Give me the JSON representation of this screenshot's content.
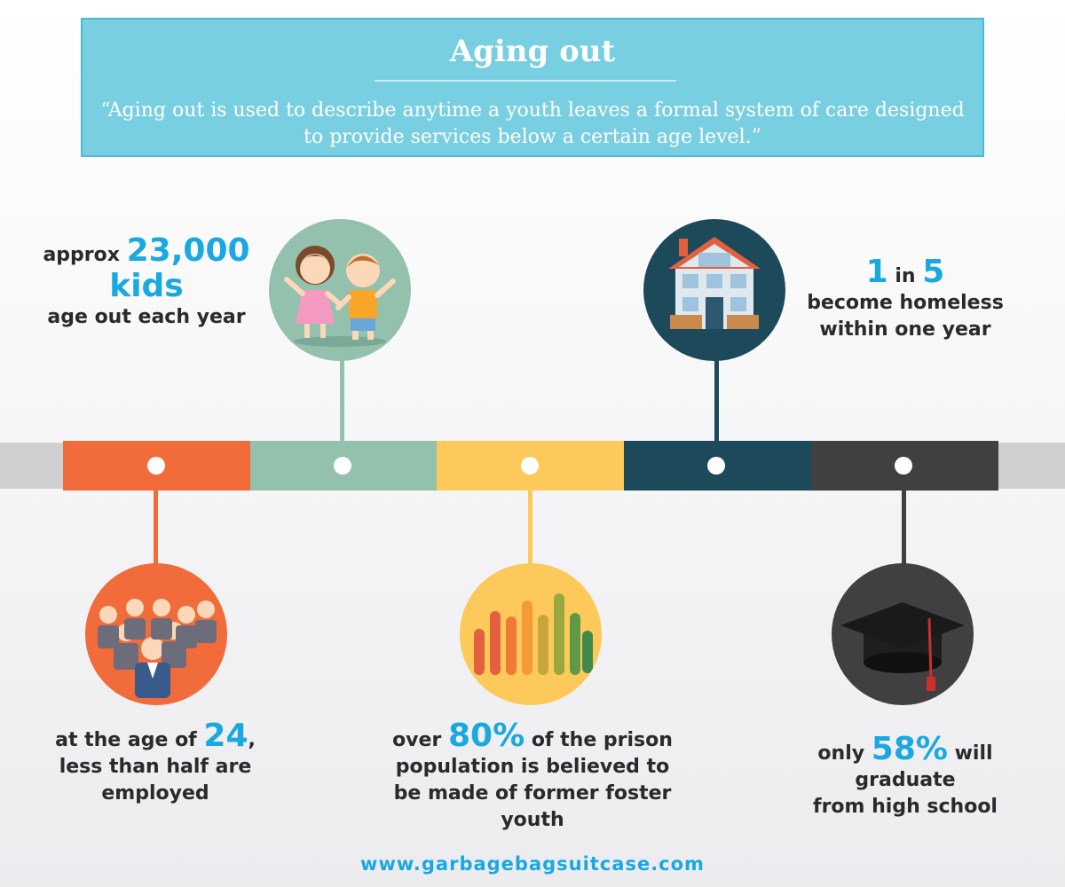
{
  "header": {
    "title": "Aging out",
    "quote_line1": "“Aging out is used to describe anytime a youth leaves a formal system of care designed",
    "quote_line2": "to provide services below a certain age level.”"
  },
  "timeline": {
    "colors": [
      "#f26b3a",
      "#93c1ad",
      "#fdc95a",
      "#1c4a5b",
      "#404040"
    ]
  },
  "stats": {
    "kids": {
      "prefix": "approx",
      "number": "23,000",
      "unit": "kids",
      "suffix": "age out each year",
      "icon": "children-icon"
    },
    "homeless": {
      "a": "1",
      "in": "in",
      "b": "5",
      "line2": "become homeless",
      "line3": "within one year",
      "icon": "house-icon"
    },
    "employed": {
      "prefix": "at the age of",
      "number": "24",
      "comma": ",",
      "line2": "less than half are",
      "line3": "employed",
      "icon": "business-people-icon"
    },
    "prison": {
      "prefix": "over",
      "number": "80%",
      "rest1": "of the prison",
      "line2": "population is believed to",
      "line3": "be made of former foster",
      "line4": "youth",
      "icon": "raised-hands-icon"
    },
    "graduate": {
      "prefix": "only",
      "number": "58%",
      "rest1": "will",
      "line2": "graduate",
      "line3": "from high school",
      "icon": "graduation-cap-icon"
    }
  },
  "footer": {
    "url": "www.garbagebagsuitcase.com"
  }
}
